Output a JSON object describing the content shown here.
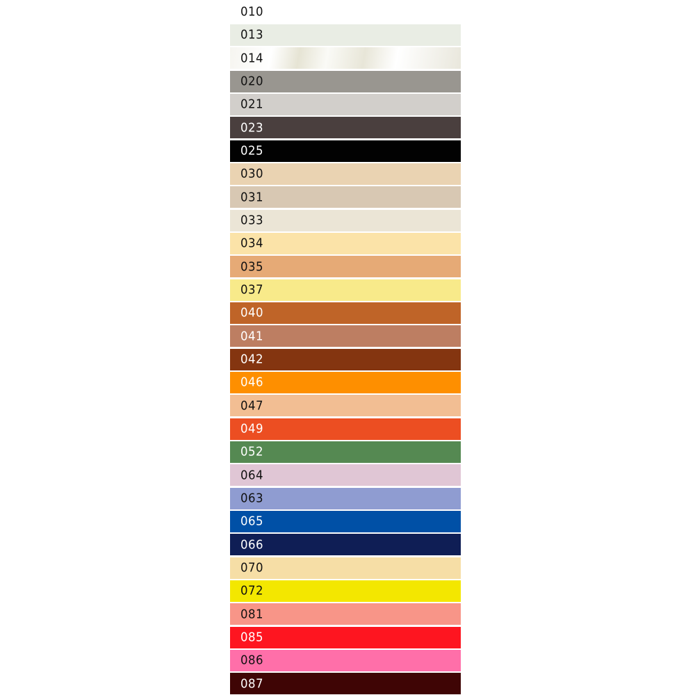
{
  "swatches": [
    {
      "code": "010",
      "color": "#ffffff",
      "text_color": "#111111"
    },
    {
      "code": "013",
      "color": "#e9ede4",
      "text_color": "#111111"
    },
    {
      "code": "014",
      "color": "#efeee6",
      "text_color": "#111111"
    },
    {
      "code": "020",
      "color": "#999690",
      "text_color": "#111111"
    },
    {
      "code": "021",
      "color": "#d2cfcb",
      "text_color": "#111111"
    },
    {
      "code": "023",
      "color": "#4a3f3e",
      "text_color": "#ffffff"
    },
    {
      "code": "025",
      "color": "#020202",
      "text_color": "#ffffff"
    },
    {
      "code": "030",
      "color": "#ead3b2",
      "text_color": "#111111"
    },
    {
      "code": "031",
      "color": "#d8c8b3",
      "text_color": "#111111"
    },
    {
      "code": "033",
      "color": "#ebe5d6",
      "text_color": "#111111"
    },
    {
      "code": "034",
      "color": "#fbe3a8",
      "text_color": "#111111"
    },
    {
      "code": "035",
      "color": "#e6aa76",
      "text_color": "#111111"
    },
    {
      "code": "037",
      "color": "#f8ea8a",
      "text_color": "#111111"
    },
    {
      "code": "040",
      "color": "#bf6428",
      "text_color": "#ffffff"
    },
    {
      "code": "041",
      "color": "#bd7e62",
      "text_color": "#ffffff"
    },
    {
      "code": "042",
      "color": "#843510",
      "text_color": "#ffffff"
    },
    {
      "code": "046",
      "color": "#fe8f00",
      "text_color": "#ffffff"
    },
    {
      "code": "047",
      "color": "#f2be93",
      "text_color": "#111111"
    },
    {
      "code": "049",
      "color": "#ec4e22",
      "text_color": "#ffffff"
    },
    {
      "code": "052",
      "color": "#558952",
      "text_color": "#ffffff"
    },
    {
      "code": "064",
      "color": "#e0c6d5",
      "text_color": "#111111"
    },
    {
      "code": "063",
      "color": "#8f9cd1",
      "text_color": "#111111"
    },
    {
      "code": "065",
      "color": "#0050a6",
      "text_color": "#ffffff"
    },
    {
      "code": "066",
      "color": "#0f1e55",
      "text_color": "#ffffff"
    },
    {
      "code": "070",
      "color": "#f6dea6",
      "text_color": "#111111"
    },
    {
      "code": "072",
      "color": "#f3e700",
      "text_color": "#111111"
    },
    {
      "code": "081",
      "color": "#f89588",
      "text_color": "#111111"
    },
    {
      "code": "085",
      "color": "#fe1520",
      "text_color": "#ffffff"
    },
    {
      "code": "086",
      "color": "#ff6fa9",
      "text_color": "#111111"
    },
    {
      "code": "087",
      "color": "#3f0505",
      "text_color": "#ffffff"
    }
  ]
}
